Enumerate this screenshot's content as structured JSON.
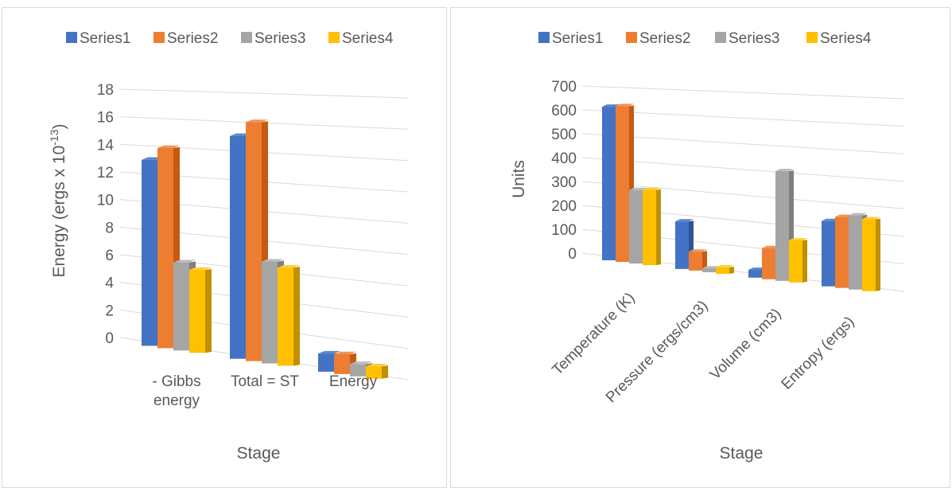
{
  "colors": {
    "series": [
      "#4472C4",
      "#ED7D31",
      "#A5A5A5",
      "#FFC000"
    ],
    "series_side": [
      "#2F5597",
      "#C55A11",
      "#7F7F7F",
      "#BF9000"
    ],
    "series_top": [
      "#5B86D0",
      "#F19556",
      "#BCBCBC",
      "#FFCD33"
    ],
    "grid": "#D9D9D9",
    "text": "#595959"
  },
  "chart_data": [
    {
      "type": "bar",
      "title": "",
      "legend_position": "top",
      "xlabel": "Stage",
      "ylabel": "Energy (ergs x 10",
      "ylabel_sup": "-13",
      "ylabel_end": ")",
      "ylim": [
        0,
        18
      ],
      "yticks": [
        "0",
        "2",
        "4",
        "6",
        "8",
        "10",
        "12",
        "14",
        "16",
        "18"
      ],
      "categories": [
        [
          "- Gibbs",
          "energy"
        ],
        [
          "Total = ST"
        ],
        [
          "Energy"
        ]
      ],
      "series": [
        {
          "name": "Series1",
          "values": [
            13.3,
            15.3,
            1.2
          ]
        },
        {
          "name": "Series2",
          "values": [
            14.2,
            16.3,
            1.3
          ]
        },
        {
          "name": "Series3",
          "values": [
            6.2,
            6.9,
            0.8
          ]
        },
        {
          "name": "Series4",
          "values": [
            5.8,
            6.6,
            0.8
          ]
        }
      ],
      "grid": true
    },
    {
      "type": "bar",
      "title": "",
      "legend_position": "top",
      "xlabel": "Stage",
      "ylabel": "Units",
      "ylim": [
        0,
        700
      ],
      "yticks": [
        "0",
        "100",
        "200",
        "300",
        "400",
        "500",
        "600",
        "700"
      ],
      "categories": [
        [
          "Temperature (K)"
        ],
        [
          "Pressure (ergs/cm3)"
        ],
        [
          "Volume (cm3)"
        ],
        [
          "Entropy (ergs)"
        ]
      ],
      "series": [
        {
          "name": "Series1",
          "values": [
            635,
            190,
            30,
            245
          ]
        },
        {
          "name": "Series2",
          "values": [
            640,
            75,
            120,
            265
          ]
        },
        {
          "name": "Series3",
          "values": [
            300,
            15,
            420,
            275
          ]
        },
        {
          "name": "Series4",
          "values": [
            305,
            25,
            160,
            265
          ]
        }
      ],
      "grid": true
    }
  ]
}
